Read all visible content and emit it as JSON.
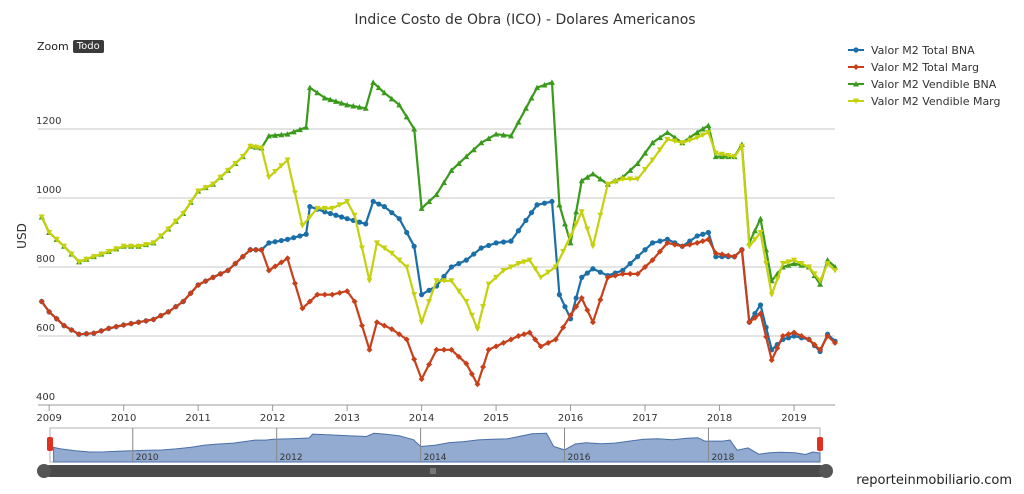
{
  "chart_data": {
    "type": "line",
    "title": "Indice Costo de Obra (ICO) - Dolares Americanos",
    "ylabel": "USD",
    "xlim": [
      2008.85,
      2019.55
    ],
    "ylim": [
      400,
      1400
    ],
    "yticks": [
      400,
      600,
      800,
      1000,
      1200
    ],
    "xticks": [
      2009,
      2010,
      2011,
      2012,
      2013,
      2014,
      2015,
      2016,
      2017,
      2018,
      2019
    ],
    "grid": true,
    "legend_position": "top-right",
    "series": [
      {
        "name": "Valor M2 Total BNA",
        "color": "#1a6fa8",
        "points": [
          [
            2008.9,
            700
          ],
          [
            2009.0,
            670
          ],
          [
            2009.2,
            630
          ],
          [
            2009.4,
            605
          ],
          [
            2009.6,
            608
          ],
          [
            2009.8,
            622
          ],
          [
            2010.0,
            632
          ],
          [
            2010.2,
            640
          ],
          [
            2010.4,
            648
          ],
          [
            2010.6,
            670
          ],
          [
            2010.8,
            700
          ],
          [
            2011.0,
            748
          ],
          [
            2011.2,
            770
          ],
          [
            2011.4,
            790
          ],
          [
            2011.6,
            830
          ],
          [
            2011.7,
            850
          ],
          [
            2011.85,
            850
          ],
          [
            2011.95,
            870
          ],
          [
            2012.2,
            880
          ],
          [
            2012.45,
            895
          ],
          [
            2012.5,
            975
          ],
          [
            2012.7,
            960
          ],
          [
            2013.0,
            940
          ],
          [
            2013.25,
            925
          ],
          [
            2013.35,
            990
          ],
          [
            2013.5,
            975
          ],
          [
            2013.7,
            940
          ],
          [
            2013.9,
            860
          ],
          [
            2014.0,
            720
          ],
          [
            2014.2,
            745
          ],
          [
            2014.4,
            800
          ],
          [
            2014.6,
            820
          ],
          [
            2014.8,
            855
          ],
          [
            2015.0,
            870
          ],
          [
            2015.2,
            875
          ],
          [
            2015.4,
            935
          ],
          [
            2015.55,
            980
          ],
          [
            2015.75,
            990
          ],
          [
            2015.85,
            720
          ],
          [
            2016.0,
            650
          ],
          [
            2016.15,
            770
          ],
          [
            2016.3,
            795
          ],
          [
            2016.5,
            775
          ],
          [
            2016.7,
            790
          ],
          [
            2016.9,
            830
          ],
          [
            2017.1,
            870
          ],
          [
            2017.3,
            880
          ],
          [
            2017.5,
            860
          ],
          [
            2017.7,
            890
          ],
          [
            2017.85,
            900
          ],
          [
            2017.95,
            830
          ],
          [
            2018.2,
            830
          ],
          [
            2018.3,
            850
          ],
          [
            2018.4,
            640
          ],
          [
            2018.55,
            690
          ],
          [
            2018.7,
            560
          ],
          [
            2018.85,
            590
          ],
          [
            2019.0,
            600
          ],
          [
            2019.2,
            590
          ],
          [
            2019.35,
            555
          ],
          [
            2019.45,
            605
          ],
          [
            2019.55,
            585
          ]
        ]
      },
      {
        "name": "Valor M2 Total Marg",
        "color": "#c8401a",
        "points": [
          [
            2008.9,
            700
          ],
          [
            2009.0,
            670
          ],
          [
            2009.2,
            630
          ],
          [
            2009.4,
            605
          ],
          [
            2009.6,
            608
          ],
          [
            2009.8,
            622
          ],
          [
            2010.0,
            632
          ],
          [
            2010.2,
            640
          ],
          [
            2010.4,
            648
          ],
          [
            2010.6,
            670
          ],
          [
            2010.8,
            700
          ],
          [
            2011.0,
            748
          ],
          [
            2011.2,
            770
          ],
          [
            2011.4,
            790
          ],
          [
            2011.6,
            830
          ],
          [
            2011.7,
            850
          ],
          [
            2011.85,
            850
          ],
          [
            2011.95,
            790
          ],
          [
            2012.2,
            825
          ],
          [
            2012.4,
            680
          ],
          [
            2012.6,
            720
          ],
          [
            2012.8,
            720
          ],
          [
            2013.0,
            730
          ],
          [
            2013.1,
            700
          ],
          [
            2013.3,
            560
          ],
          [
            2013.4,
            640
          ],
          [
            2013.6,
            620
          ],
          [
            2013.8,
            590
          ],
          [
            2014.0,
            475
          ],
          [
            2014.2,
            560
          ],
          [
            2014.4,
            560
          ],
          [
            2014.6,
            520
          ],
          [
            2014.75,
            460
          ],
          [
            2014.9,
            560
          ],
          [
            2015.1,
            580
          ],
          [
            2015.3,
            600
          ],
          [
            2015.45,
            610
          ],
          [
            2015.6,
            570
          ],
          [
            2015.8,
            590
          ],
          [
            2016.0,
            660
          ],
          [
            2016.15,
            710
          ],
          [
            2016.3,
            640
          ],
          [
            2016.5,
            770
          ],
          [
            2016.7,
            780
          ],
          [
            2016.9,
            780
          ],
          [
            2017.1,
            820
          ],
          [
            2017.3,
            870
          ],
          [
            2017.5,
            860
          ],
          [
            2017.7,
            870
          ],
          [
            2017.85,
            880
          ],
          [
            2017.95,
            840
          ],
          [
            2018.2,
            830
          ],
          [
            2018.3,
            850
          ],
          [
            2018.4,
            640
          ],
          [
            2018.55,
            665
          ],
          [
            2018.7,
            530
          ],
          [
            2018.85,
            600
          ],
          [
            2019.0,
            610
          ],
          [
            2019.2,
            590
          ],
          [
            2019.35,
            560
          ],
          [
            2019.45,
            600
          ],
          [
            2019.55,
            580
          ]
        ]
      },
      {
        "name": "Valor M2 Vendible BNA",
        "color": "#3a9a1c",
        "points": [
          [
            2008.9,
            945
          ],
          [
            2009.0,
            900
          ],
          [
            2009.2,
            860
          ],
          [
            2009.4,
            815
          ],
          [
            2009.6,
            830
          ],
          [
            2009.8,
            845
          ],
          [
            2010.0,
            860
          ],
          [
            2010.2,
            860
          ],
          [
            2010.4,
            870
          ],
          [
            2010.6,
            910
          ],
          [
            2010.8,
            955
          ],
          [
            2011.0,
            1020
          ],
          [
            2011.2,
            1040
          ],
          [
            2011.4,
            1080
          ],
          [
            2011.6,
            1120
          ],
          [
            2011.7,
            1150
          ],
          [
            2011.85,
            1145
          ],
          [
            2011.95,
            1180
          ],
          [
            2012.2,
            1185
          ],
          [
            2012.45,
            1205
          ],
          [
            2012.5,
            1320
          ],
          [
            2012.7,
            1290
          ],
          [
            2013.0,
            1270
          ],
          [
            2013.25,
            1260
          ],
          [
            2013.35,
            1335
          ],
          [
            2013.5,
            1305
          ],
          [
            2013.7,
            1270
          ],
          [
            2013.9,
            1200
          ],
          [
            2014.0,
            970
          ],
          [
            2014.2,
            1010
          ],
          [
            2014.4,
            1080
          ],
          [
            2014.6,
            1120
          ],
          [
            2014.8,
            1160
          ],
          [
            2015.0,
            1185
          ],
          [
            2015.2,
            1180
          ],
          [
            2015.4,
            1260
          ],
          [
            2015.55,
            1320
          ],
          [
            2015.75,
            1335
          ],
          [
            2015.85,
            980
          ],
          [
            2016.0,
            870
          ],
          [
            2016.15,
            1050
          ],
          [
            2016.3,
            1070
          ],
          [
            2016.5,
            1040
          ],
          [
            2016.7,
            1060
          ],
          [
            2016.9,
            1100
          ],
          [
            2017.1,
            1160
          ],
          [
            2017.3,
            1190
          ],
          [
            2017.5,
            1160
          ],
          [
            2017.7,
            1190
          ],
          [
            2017.85,
            1210
          ],
          [
            2017.95,
            1120
          ],
          [
            2018.2,
            1120
          ],
          [
            2018.3,
            1155
          ],
          [
            2018.4,
            870
          ],
          [
            2018.55,
            940
          ],
          [
            2018.7,
            760
          ],
          [
            2018.85,
            800
          ],
          [
            2019.0,
            810
          ],
          [
            2019.2,
            800
          ],
          [
            2019.35,
            750
          ],
          [
            2019.45,
            820
          ],
          [
            2019.55,
            800
          ]
        ]
      },
      {
        "name": "Valor M2 Vendible Marg",
        "color": "#c5d10c",
        "points": [
          [
            2008.9,
            945
          ],
          [
            2009.0,
            900
          ],
          [
            2009.2,
            860
          ],
          [
            2009.4,
            815
          ],
          [
            2009.6,
            830
          ],
          [
            2009.8,
            845
          ],
          [
            2010.0,
            860
          ],
          [
            2010.2,
            860
          ],
          [
            2010.4,
            870
          ],
          [
            2010.6,
            910
          ],
          [
            2010.8,
            955
          ],
          [
            2011.0,
            1020
          ],
          [
            2011.2,
            1040
          ],
          [
            2011.4,
            1080
          ],
          [
            2011.6,
            1120
          ],
          [
            2011.7,
            1150
          ],
          [
            2011.85,
            1145
          ],
          [
            2011.95,
            1060
          ],
          [
            2012.2,
            1110
          ],
          [
            2012.4,
            920
          ],
          [
            2012.6,
            970
          ],
          [
            2012.8,
            970
          ],
          [
            2013.0,
            990
          ],
          [
            2013.1,
            950
          ],
          [
            2013.3,
            760
          ],
          [
            2013.4,
            870
          ],
          [
            2013.6,
            840
          ],
          [
            2013.8,
            800
          ],
          [
            2014.0,
            640
          ],
          [
            2014.2,
            760
          ],
          [
            2014.4,
            760
          ],
          [
            2014.6,
            700
          ],
          [
            2014.75,
            620
          ],
          [
            2014.9,
            750
          ],
          [
            2015.1,
            790
          ],
          [
            2015.3,
            810
          ],
          [
            2015.45,
            820
          ],
          [
            2015.6,
            770
          ],
          [
            2015.8,
            800
          ],
          [
            2016.0,
            890
          ],
          [
            2016.15,
            960
          ],
          [
            2016.3,
            860
          ],
          [
            2016.5,
            1040
          ],
          [
            2016.7,
            1055
          ],
          [
            2016.9,
            1055
          ],
          [
            2017.1,
            1110
          ],
          [
            2017.3,
            1170
          ],
          [
            2017.5,
            1160
          ],
          [
            2017.7,
            1175
          ],
          [
            2017.85,
            1190
          ],
          [
            2017.95,
            1130
          ],
          [
            2018.2,
            1120
          ],
          [
            2018.3,
            1150
          ],
          [
            2018.4,
            860
          ],
          [
            2018.55,
            900
          ],
          [
            2018.7,
            720
          ],
          [
            2018.85,
            810
          ],
          [
            2019.0,
            820
          ],
          [
            2019.2,
            800
          ],
          [
            2019.35,
            760
          ],
          [
            2019.45,
            810
          ],
          [
            2019.55,
            790
          ]
        ]
      }
    ],
    "navigator": {
      "ticks": [
        2010,
        2012,
        2014,
        2016,
        2018
      ],
      "color": "#6f8fc0"
    }
  },
  "ui": {
    "zoom_label": "Zoom",
    "zoom_button": "Todo",
    "watermark": "reporteinmobiliario.com"
  }
}
